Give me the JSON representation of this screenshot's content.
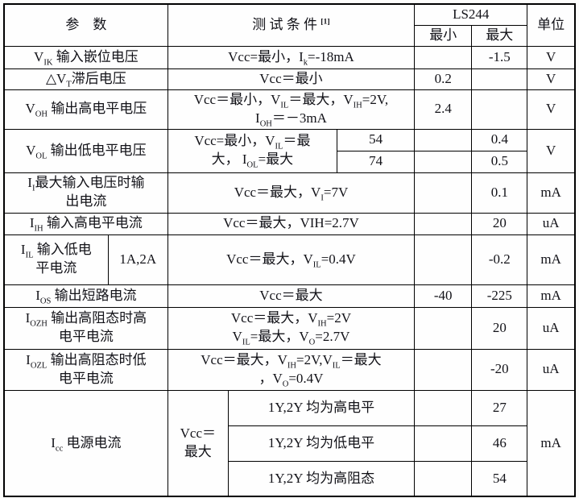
{
  "table_title": "LS244 electrical characteristics",
  "header": {
    "param": "参　数",
    "cond": [
      {
        "t": "测 试 条 件 "
      },
      {
        "t": "[1]",
        "p": 1
      }
    ],
    "device": "LS244",
    "min": "最小",
    "max": "最大",
    "unit": "单位"
  },
  "rows": {
    "vik": {
      "param": [
        {
          "t": "V"
        },
        {
          "t": "IK",
          "s": 1
        },
        {
          "t": " 输入嵌位电压"
        }
      ],
      "cond": [
        {
          "t": "Vcc=最小，I"
        },
        {
          "t": "k",
          "s": 1
        },
        {
          "t": "=-18mA"
        }
      ],
      "min": "",
      "max": "-1.5",
      "unit": "V"
    },
    "dvt": {
      "param": [
        {
          "t": "△V"
        },
        {
          "t": "T",
          "s": 1
        },
        {
          "t": "滞后电压"
        }
      ],
      "cond": [
        {
          "t": "Vcc＝最小"
        }
      ],
      "min": "0.2",
      "max": "",
      "unit": "V"
    },
    "voh": {
      "param": [
        {
          "t": "V"
        },
        {
          "t": "OH",
          "s": 1
        },
        {
          "t": " 输出高电平电压"
        }
      ],
      "cond": [
        {
          "t": "Vcc＝最小，V"
        },
        {
          "t": "IL",
          "s": 1
        },
        {
          "t": "＝最大，V"
        },
        {
          "t": "IH",
          "s": 1
        },
        {
          "t": "=2V,"
        },
        {
          "br": 1
        },
        {
          "t": "I"
        },
        {
          "t": "OH",
          "s": 1
        },
        {
          "t": "＝－3mA"
        }
      ],
      "min": "2.4",
      "max": "",
      "unit": "V"
    },
    "vol": {
      "param": [
        {
          "t": "V"
        },
        {
          "t": "OL",
          "s": 1
        },
        {
          "t": " 输出低电平电压"
        }
      ],
      "cond": [
        {
          "t": "Vcc=最小，V"
        },
        {
          "t": "IL",
          "s": 1
        },
        {
          "t": "＝最"
        },
        {
          "br": 1
        },
        {
          "t": "大， I"
        },
        {
          "t": "OL",
          "s": 1
        },
        {
          "t": "=最大"
        }
      ],
      "sub": [
        {
          "label": "54",
          "min": "",
          "max": "0.4"
        },
        {
          "label": "74",
          "min": "",
          "max": "0.5"
        }
      ],
      "unit": "V"
    },
    "ii": {
      "param": [
        {
          "t": "I"
        },
        {
          "t": "I",
          "s": 1
        },
        {
          "t": "最大输入电压时输"
        },
        {
          "br": 1
        },
        {
          "t": "出电流"
        }
      ],
      "cond": [
        {
          "t": "Vcc＝最大，V"
        },
        {
          "t": "I",
          "s": 1
        },
        {
          "t": "=7V"
        }
      ],
      "min": "",
      "max": "0.1",
      "unit": "mA"
    },
    "iih": {
      "param": [
        {
          "t": "I"
        },
        {
          "t": "IH",
          "s": 1
        },
        {
          "t": " 输入高电平电流"
        }
      ],
      "cond": [
        {
          "t": "Vcc＝最大，VIH=2.7V"
        }
      ],
      "min": "",
      "max": "20",
      "unit": "uA"
    },
    "iil": {
      "param": [
        {
          "t": "I"
        },
        {
          "t": "IL",
          "s": 1
        },
        {
          "t": " 输入低电"
        },
        {
          "br": 1
        },
        {
          "t": "平电流"
        }
      ],
      "gate": "1A,2A",
      "cond": [
        {
          "t": "Vcc＝最大，V"
        },
        {
          "t": "IL",
          "s": 1
        },
        {
          "t": "=0.4V"
        }
      ],
      "min": "",
      "max": "-0.2",
      "unit": "mA"
    },
    "ios": {
      "param": [
        {
          "t": "I"
        },
        {
          "t": "OS",
          "s": 1
        },
        {
          "t": " 输出短路电流"
        }
      ],
      "cond": [
        {
          "t": "Vcc＝最大"
        }
      ],
      "min": "-40",
      "max": "-225",
      "unit": "mA"
    },
    "iozh": {
      "param": [
        {
          "t": "I"
        },
        {
          "t": "OZH",
          "s": 1
        },
        {
          "t": " 输出高阻态时高"
        },
        {
          "br": 1
        },
        {
          "t": "电平电流"
        }
      ],
      "cond": [
        {
          "t": "Vcc＝最大，V"
        },
        {
          "t": "IH",
          "s": 1
        },
        {
          "t": "=2V"
        },
        {
          "br": 1
        },
        {
          "t": "V"
        },
        {
          "t": "IL",
          "s": 1
        },
        {
          "t": "=最大，V"
        },
        {
          "t": "O",
          "s": 1
        },
        {
          "t": "=2.7V"
        }
      ],
      "min": "",
      "max": "20",
      "unit": "uA"
    },
    "iozl": {
      "param": [
        {
          "t": "I"
        },
        {
          "t": "OZL",
          "s": 1
        },
        {
          "t": " 输出高阻态时低"
        },
        {
          "br": 1
        },
        {
          "t": "电平电流"
        }
      ],
      "cond": [
        {
          "t": "Vcc＝最大，V"
        },
        {
          "t": "IH",
          "s": 1
        },
        {
          "t": "=2V,V"
        },
        {
          "t": "IL",
          "s": 1
        },
        {
          "t": "＝最大"
        },
        {
          "br": 1
        },
        {
          "t": "，V"
        },
        {
          "t": "O",
          "s": 1
        },
        {
          "t": "=0.4V"
        }
      ],
      "min": "",
      "max": "-20",
      "unit": "uA"
    },
    "icc": {
      "param": [
        {
          "t": "I"
        },
        {
          "t": "cc",
          "s": 1
        },
        {
          "t": " 电源电流"
        }
      ],
      "cond": [
        {
          "t": "Vcc＝"
        },
        {
          "br": 1
        },
        {
          "t": "最大"
        }
      ],
      "sub": [
        {
          "label": "1Y,2Y 均为高电平",
          "min": "",
          "max": "27"
        },
        {
          "label": "1Y,2Y 均为低电平",
          "min": "",
          "max": "46"
        },
        {
          "label": "1Y,2Y 均为高阻态",
          "min": "",
          "max": "54"
        }
      ],
      "unit": "mA"
    }
  }
}
